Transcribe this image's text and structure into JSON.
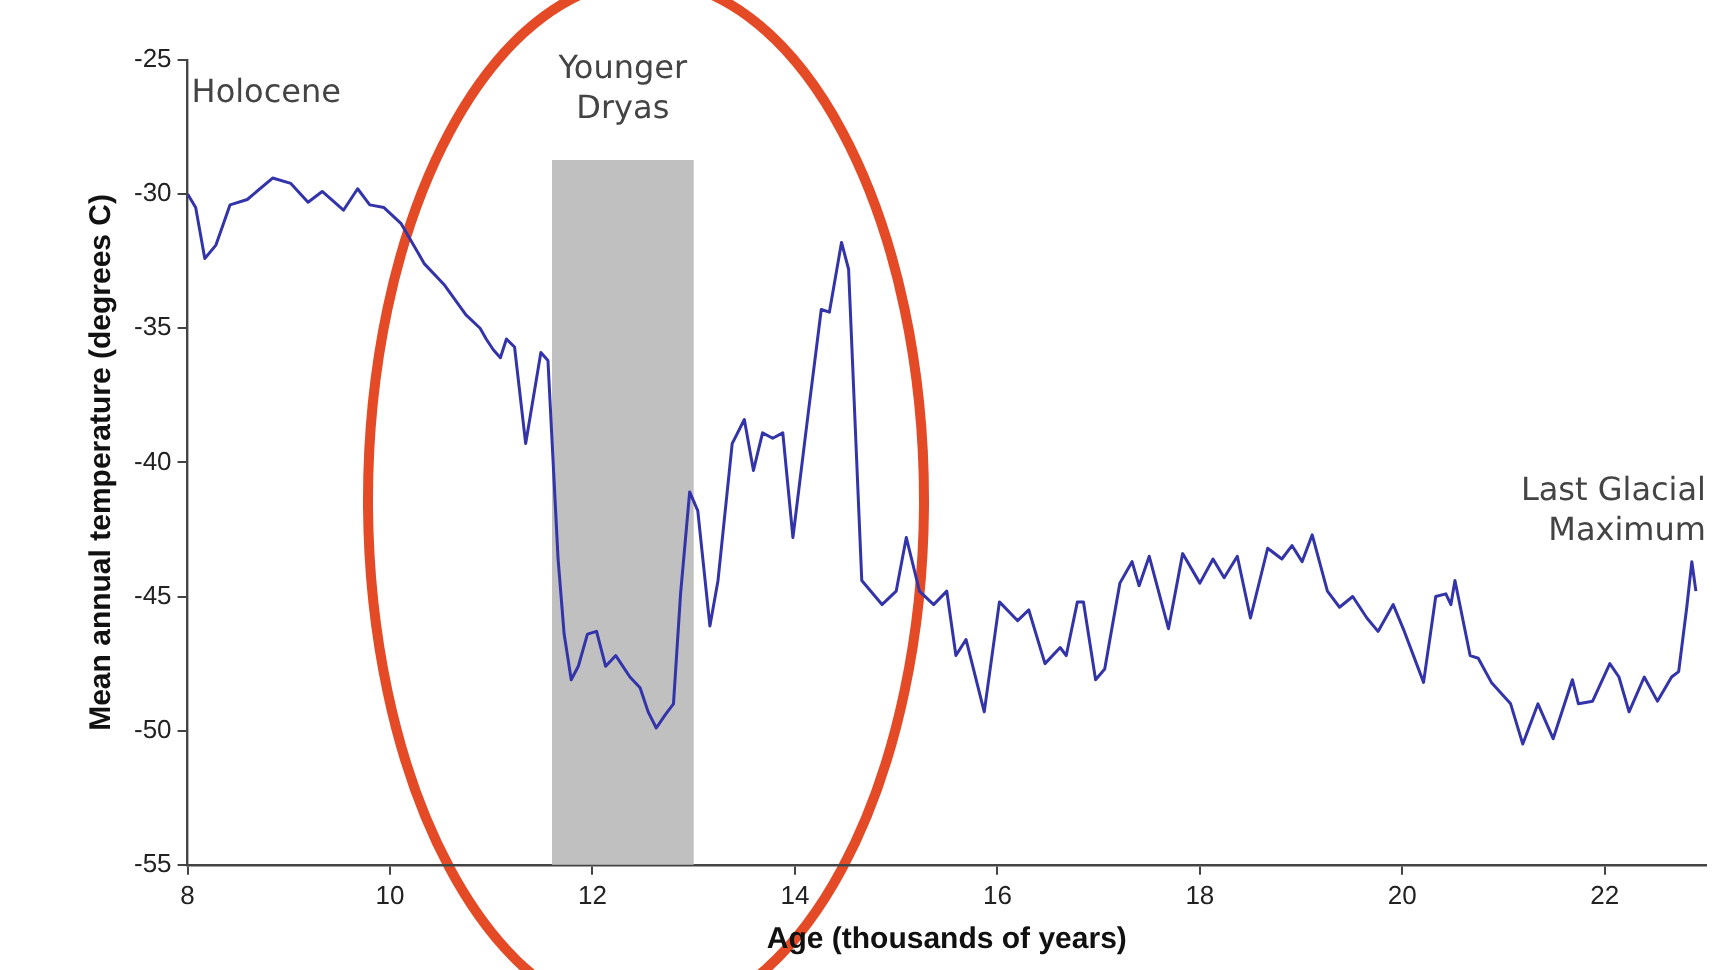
{
  "chart_data": {
    "type": "line",
    "xlabel": "Age (thousands of years)",
    "ylabel": "Mean annual temperature (degrees C)",
    "xlim": [
      8,
      23
    ],
    "xticks": [
      8,
      10,
      12,
      14,
      16,
      18,
      20,
      22
    ],
    "ylim": [
      -55,
      -25
    ],
    "yticks": [
      -25,
      -30,
      -35,
      -40,
      -45,
      -50,
      -55
    ],
    "marker": "none",
    "line_style": "solid",
    "legend": false,
    "grid": false,
    "bands": [
      {
        "axis": "x",
        "from": 11.6,
        "to": 13.0,
        "label": "Younger Dryas",
        "color": "#c0c0c0"
      }
    ],
    "annotations": [
      "Holocene",
      "Last Glacial Maximum"
    ],
    "series": [
      {
        "color": "#3333aa",
        "x": [
          8.0,
          8.08,
          8.17,
          8.28,
          8.42,
          8.59,
          8.84,
          9.02,
          9.19,
          9.33,
          9.54,
          9.68,
          9.8,
          9.94,
          10.11,
          10.34,
          10.54,
          10.75,
          10.89,
          10.95,
          11.02,
          11.09,
          11.15,
          11.23,
          11.34,
          11.49,
          11.56,
          11.66,
          11.72,
          11.79,
          11.86,
          11.95,
          12.04,
          12.13,
          12.23,
          12.37,
          12.47,
          12.55,
          12.63,
          12.72,
          12.8,
          12.87,
          12.96,
          13.04,
          13.16,
          13.24,
          13.38,
          13.5,
          13.59,
          13.68,
          13.78,
          13.88,
          13.98,
          14.13,
          14.26,
          14.34,
          14.46,
          14.53,
          14.66,
          14.86,
          15.0,
          15.1,
          15.23,
          15.37,
          15.5,
          15.59,
          15.69,
          15.87,
          16.02,
          16.2,
          16.31,
          16.47,
          16.62,
          16.68,
          16.79,
          16.85,
          16.97,
          17.06,
          17.21,
          17.33,
          17.4,
          17.5,
          17.69,
          17.83,
          18.0,
          18.13,
          18.24,
          18.37,
          18.5,
          18.67,
          18.81,
          18.91,
          19.01,
          19.11,
          19.26,
          19.38,
          19.51,
          19.65,
          19.76,
          19.91,
          20.02,
          20.21,
          20.33,
          20.43,
          20.48,
          20.52,
          20.67,
          20.75,
          20.88,
          21.07,
          21.19,
          21.34,
          21.49,
          21.68,
          21.74,
          21.88,
          22.05,
          22.14,
          22.24,
          22.39,
          22.52,
          22.66,
          22.73,
          22.81,
          22.86,
          22.9
        ],
        "values": [
          -30.0,
          -30.5,
          -32.4,
          -31.9,
          -30.4,
          -30.2,
          -29.4,
          -29.6,
          -30.3,
          -29.9,
          -30.6,
          -29.8,
          -30.4,
          -30.5,
          -31.1,
          -32.6,
          -33.4,
          -34.5,
          -35.0,
          -35.4,
          -35.8,
          -36.1,
          -35.4,
          -35.7,
          -39.3,
          -35.9,
          -36.2,
          -43.6,
          -46.4,
          -48.1,
          -47.6,
          -46.4,
          -46.3,
          -47.6,
          -47.2,
          -48.0,
          -48.4,
          -49.3,
          -49.9,
          -49.4,
          -49.0,
          -44.9,
          -41.1,
          -41.8,
          -46.1,
          -44.4,
          -39.3,
          -38.4,
          -40.3,
          -38.9,
          -39.1,
          -38.9,
          -42.8,
          -38.2,
          -34.3,
          -34.4,
          -31.8,
          -32.8,
          -44.4,
          -45.3,
          -44.8,
          -42.8,
          -44.8,
          -45.3,
          -44.8,
          -47.2,
          -46.6,
          -49.3,
          -45.2,
          -45.9,
          -45.5,
          -47.5,
          -46.9,
          -47.2,
          -45.2,
          -45.2,
          -48.1,
          -47.7,
          -44.5,
          -43.7,
          -44.6,
          -43.5,
          -46.2,
          -43.4,
          -44.5,
          -43.6,
          -44.3,
          -43.5,
          -45.8,
          -43.2,
          -43.6,
          -43.1,
          -43.7,
          -42.7,
          -44.8,
          -45.4,
          -45.0,
          -45.8,
          -46.3,
          -45.3,
          -46.3,
          -48.2,
          -45.0,
          -44.9,
          -45.3,
          -44.4,
          -47.2,
          -47.3,
          -48.2,
          -49.0,
          -50.5,
          -49.0,
          -50.3,
          -48.1,
          -49.0,
          -48.9,
          -47.5,
          -48.0,
          -49.3,
          -48.0,
          -48.9,
          -48.0,
          -47.8,
          -45.4,
          -43.7,
          -44.8
        ]
      }
    ]
  }
}
